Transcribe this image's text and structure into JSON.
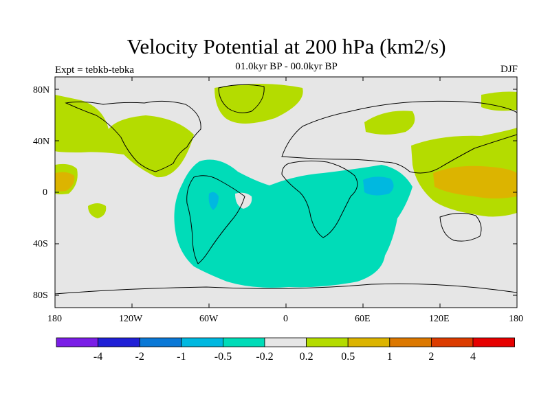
{
  "title": "Velocity Potential at 200 hPa (km2/s)",
  "subtitle": "01.0kyr BP - 00.0kyr BP",
  "expt_label": "Expt = tebkb-tebka",
  "season": "DJF",
  "lat_ticks": [
    {
      "label": "80N"
    },
    {
      "label": "40N"
    },
    {
      "label": "0"
    },
    {
      "label": "40S"
    },
    {
      "label": "80S"
    }
  ],
  "lon_ticks": [
    {
      "label": "180"
    },
    {
      "label": "120W"
    },
    {
      "label": "60W"
    },
    {
      "label": "0"
    },
    {
      "label": "60E"
    },
    {
      "label": "120E"
    },
    {
      "label": "180"
    }
  ],
  "colorbar": {
    "colors": [
      "#7a1ee6",
      "#2020d6",
      "#0a78d6",
      "#00b8e0",
      "#00dcb8",
      "#e6e6e6",
      "#b4dc00",
      "#dcb400",
      "#dc7800",
      "#dc3c00",
      "#e60000",
      "#e60000"
    ],
    "labels": [
      "-4",
      "-2",
      "-1",
      "-0.5",
      "-0.2",
      "0.2",
      "0.5",
      "1",
      "2",
      "4"
    ]
  },
  "field_colors": {
    "background": "#e6e6e6",
    "positive_weak": "#b4dc00",
    "positive_mid": "#dcb400",
    "negative_weak": "#00dcb8",
    "negative_mid": "#00b8e0"
  }
}
